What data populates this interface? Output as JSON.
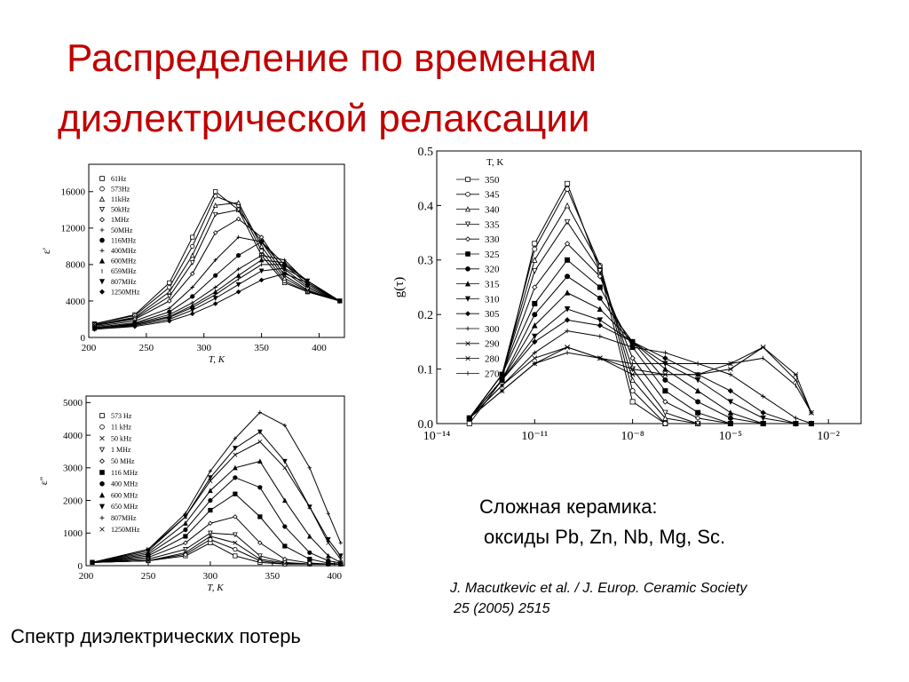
{
  "slide": {
    "title_lines": [
      "Распределение по временам",
      "диэлектрической  релаксации"
    ],
    "material_lines": [
      "Сложная керамика:",
      "оксиды Pb, Zn, Nb, Mg, Sc."
    ],
    "reference_lines": [
      "J. Macutkevic et al. / J. Europ. Ceramic Society",
      "25 (2005) 2515"
    ],
    "caption": "Спектр диэлектрических потерь"
  },
  "chart_data": [
    {
      "type": "line",
      "xlabel": "T, K",
      "ylabel": "ε'",
      "x": [
        205,
        240,
        270,
        290,
        310,
        330,
        350,
        370,
        390,
        418
      ],
      "xlim": [
        200,
        422
      ],
      "ylim": [
        0,
        19000
      ],
      "xticks": [
        200,
        250,
        300,
        350,
        400
      ],
      "yticks": [
        0,
        4000,
        8000,
        12000,
        16000
      ],
      "series": [
        {
          "name": "61Hz",
          "color": "#000000",
          "marker": "square-open",
          "values": [
            1500,
            2500,
            6000,
            11000,
            16000,
            14000,
            9000,
            6000,
            5000,
            4000
          ]
        },
        {
          "name": "573Hz",
          "color": "#000000",
          "marker": "circle-open",
          "values": [
            1500,
            2400,
            5500,
            10000,
            15500,
            14500,
            9500,
            6200,
            5000,
            4000
          ]
        },
        {
          "name": "11kHz",
          "color": "#000000",
          "marker": "triangle-open",
          "values": [
            1400,
            2200,
            5000,
            9000,
            14500,
            14800,
            10000,
            6500,
            5100,
            4000
          ]
        },
        {
          "name": "50kHz",
          "color": "#000000",
          "marker": "triangle-down-open",
          "values": [
            1400,
            2100,
            4500,
            8200,
            13500,
            14000,
            10500,
            6800,
            5200,
            4000
          ]
        },
        {
          "name": "1MHz",
          "color": "#000000",
          "marker": "diamond-open",
          "values": [
            1300,
            2000,
            4000,
            7000,
            11500,
            13000,
            11000,
            7200,
            5400,
            4000
          ]
        },
        {
          "name": "50MHz",
          "color": "#000000",
          "marker": "plus",
          "values": [
            1200,
            1800,
            3200,
            5500,
            8500,
            11000,
            10500,
            7500,
            5600,
            4000
          ]
        },
        {
          "name": "116MHz",
          "color": "#000000",
          "marker": "circle",
          "values": [
            1100,
            1600,
            2800,
            4500,
            6800,
            9000,
            10500,
            8000,
            5800,
            4000
          ]
        },
        {
          "name": "400MHz",
          "color": "#000000",
          "marker": "plus",
          "values": [
            1000,
            1500,
            2500,
            3800,
            5500,
            7500,
            9000,
            8500,
            6000,
            4000
          ]
        },
        {
          "name": "600MHz",
          "color": "#000000",
          "marker": "triangle",
          "values": [
            1000,
            1400,
            2300,
            3500,
            5000,
            6800,
            8500,
            8200,
            6200,
            4000
          ]
        },
        {
          "name": "659MHz",
          "color": "#000000",
          "marker": "vline",
          "values": [
            1000,
            1400,
            2200,
            3300,
            4700,
            6400,
            8000,
            8000,
            6200,
            4000
          ]
        },
        {
          "name": "807MHz",
          "color": "#000000",
          "marker": "triangle-down",
          "values": [
            900,
            1300,
            2000,
            3000,
            4300,
            5800,
            7300,
            7600,
            6200,
            4000
          ]
        },
        {
          "name": "1250MHz",
          "color": "#000000",
          "marker": "diamond",
          "values": [
            900,
            1200,
            1800,
            2600,
            3700,
            5000,
            6300,
            7000,
            6000,
            4000
          ]
        }
      ]
    },
    {
      "type": "line",
      "xlabel": "T, K",
      "ylabel": "ε''",
      "x": [
        205,
        250,
        280,
        300,
        320,
        340,
        360,
        380,
        395,
        405
      ],
      "xlim": [
        200,
        408
      ],
      "ylim": [
        0,
        5200
      ],
      "xticks": [
        200,
        250,
        300,
        350,
        400
      ],
      "yticks": [
        0,
        1000,
        2000,
        3000,
        4000,
        5000
      ],
      "series": [
        {
          "name": "573 Hz",
          "color": "#000000",
          "marker": "square-open",
          "values": [
            100,
            150,
            300,
            700,
            300,
            100,
            50,
            50,
            50,
            50
          ]
        },
        {
          "name": "11 kHz",
          "color": "#000000",
          "marker": "circle-open",
          "values": [
            100,
            150,
            350,
            800,
            500,
            150,
            50,
            50,
            50,
            50
          ]
        },
        {
          "name": "50 kHz",
          "color": "#000000",
          "marker": "cross",
          "values": [
            100,
            150,
            400,
            900,
            700,
            200,
            80,
            50,
            50,
            50
          ]
        },
        {
          "name": "1 MHz",
          "color": "#000000",
          "marker": "triangle-down-open",
          "values": [
            100,
            200,
            500,
            1000,
            950,
            300,
            100,
            50,
            50,
            50
          ]
        },
        {
          "name": "50 MHz",
          "color": "#000000",
          "marker": "diamond-open",
          "values": [
            100,
            250,
            700,
            1300,
            1500,
            700,
            200,
            80,
            50,
            50
          ]
        },
        {
          "name": "116 MHz",
          "color": "#000000",
          "marker": "square",
          "values": [
            100,
            300,
            900,
            1700,
            2200,
            1500,
            600,
            200,
            80,
            50
          ]
        },
        {
          "name": "400 MHz",
          "color": "#000000",
          "marker": "circle",
          "values": [
            100,
            350,
            1100,
            2000,
            2700,
            2400,
            1200,
            400,
            150,
            80
          ]
        },
        {
          "name": "600 MHz",
          "color": "#000000",
          "marker": "triangle",
          "values": [
            100,
            400,
            1300,
            2300,
            3000,
            3200,
            2000,
            900,
            300,
            100
          ]
        },
        {
          "name": "650 MHz",
          "color": "#000000",
          "marker": "triangle-down",
          "values": [
            100,
            450,
            1500,
            2700,
            3600,
            4100,
            3200,
            1800,
            800,
            300
          ]
        },
        {
          "name": "807MHz",
          "color": "#000000",
          "marker": "plus",
          "values": [
            100,
            500,
            1600,
            2900,
            3900,
            4700,
            4300,
            3000,
            1600,
            700
          ]
        },
        {
          "name": "1250MHz",
          "color": "#000000",
          "marker": "cross",
          "values": [
            100,
            500,
            1500,
            2600,
            3400,
            3800,
            3000,
            1800,
            700,
            200
          ]
        }
      ]
    },
    {
      "type": "line",
      "ylabel": "g(τ)",
      "legend_title": "T, K",
      "xscale": "log",
      "x": [
        1e-13,
        1e-12,
        1e-11,
        1e-10,
        1e-09,
        1e-08,
        1e-07,
        1e-06,
        1e-05,
        0.0001,
        0.001,
        0.003
      ],
      "xlim": [
        1e-14,
        0.1
      ],
      "ylim": [
        0,
        0.5
      ],
      "xticks": [
        {
          "value": 1e-14,
          "label": "10⁻¹⁴"
        },
        {
          "value": 1e-11,
          "label": "10⁻¹¹"
        },
        {
          "value": 1e-08,
          "label": "10⁻⁸"
        },
        {
          "value": 1e-05,
          "label": "10⁻⁵"
        },
        {
          "value": 0.01,
          "label": "10⁻²"
        }
      ],
      "yticks": [
        {
          "value": 0,
          "label": "0.0"
        },
        0.1,
        0.2,
        0.3,
        0.4,
        0.5
      ],
      "series": [
        {
          "name": "350",
          "color": "#000000",
          "marker": "square-open",
          "values": [
            0.0,
            0.08,
            0.33,
            0.44,
            0.28,
            0.04,
            0.0,
            0.0,
            0.0,
            0.0,
            0.0,
            0.0
          ]
        },
        {
          "name": "345",
          "color": "#000000",
          "marker": "circle-open",
          "values": [
            0.01,
            0.09,
            0.32,
            0.43,
            0.29,
            0.06,
            0.0,
            0.0,
            0.0,
            0.0,
            0.0,
            0.0
          ]
        },
        {
          "name": "340",
          "color": "#000000",
          "marker": "triangle-open",
          "values": [
            0.01,
            0.09,
            0.3,
            0.4,
            0.29,
            0.08,
            0.01,
            0.0,
            0.0,
            0.0,
            0.0,
            0.0
          ]
        },
        {
          "name": "335",
          "color": "#000000",
          "marker": "triangle-down-open",
          "values": [
            0.01,
            0.09,
            0.28,
            0.37,
            0.28,
            0.1,
            0.02,
            0.0,
            0.0,
            0.0,
            0.0,
            0.0
          ]
        },
        {
          "name": "330",
          "color": "#000000",
          "marker": "diamond-open",
          "values": [
            0.01,
            0.09,
            0.25,
            0.33,
            0.27,
            0.12,
            0.04,
            0.01,
            0.0,
            0.0,
            0.0,
            0.0
          ]
        },
        {
          "name": "325",
          "color": "#000000",
          "marker": "square",
          "values": [
            0.01,
            0.09,
            0.22,
            0.3,
            0.25,
            0.14,
            0.06,
            0.02,
            0.0,
            0.0,
            0.0,
            0.0
          ]
        },
        {
          "name": "320",
          "color": "#000000",
          "marker": "circle",
          "values": [
            0.01,
            0.08,
            0.2,
            0.27,
            0.23,
            0.15,
            0.08,
            0.04,
            0.01,
            0.0,
            0.0,
            0.0
          ]
        },
        {
          "name": "315",
          "color": "#000000",
          "marker": "triangle",
          "values": [
            0.01,
            0.08,
            0.18,
            0.24,
            0.21,
            0.15,
            0.1,
            0.06,
            0.02,
            0.0,
            0.0,
            0.0
          ]
        },
        {
          "name": "310",
          "color": "#000000",
          "marker": "triangle-down",
          "values": [
            0.01,
            0.08,
            0.16,
            0.21,
            0.19,
            0.15,
            0.11,
            0.08,
            0.04,
            0.01,
            0.0,
            0.0
          ]
        },
        {
          "name": "305",
          "color": "#000000",
          "marker": "diamond",
          "values": [
            0.01,
            0.08,
            0.15,
            0.19,
            0.18,
            0.15,
            0.12,
            0.09,
            0.06,
            0.02,
            0.0,
            0.0
          ]
        },
        {
          "name": "300",
          "color": "#000000",
          "marker": "plus",
          "values": [
            0.01,
            0.07,
            0.13,
            0.17,
            0.16,
            0.14,
            0.13,
            0.11,
            0.09,
            0.05,
            0.01,
            0.0
          ]
        },
        {
          "name": "290",
          "color": "#000000",
          "marker": "cross",
          "values": [
            0.01,
            0.07,
            0.12,
            0.14,
            0.12,
            0.1,
            0.09,
            0.09,
            0.11,
            0.14,
            0.08,
            0.02
          ]
        },
        {
          "name": "280",
          "color": "#000000",
          "marker": "star",
          "values": [
            0.01,
            0.06,
            0.11,
            0.14,
            0.12,
            0.09,
            0.09,
            0.09,
            0.1,
            0.14,
            0.09,
            0.02
          ]
        },
        {
          "name": "270",
          "color": "#000000",
          "marker": "vline",
          "values": [
            0.01,
            0.06,
            0.11,
            0.13,
            0.12,
            0.11,
            0.11,
            0.11,
            0.11,
            0.12,
            0.07,
            0.02
          ]
        }
      ]
    }
  ]
}
